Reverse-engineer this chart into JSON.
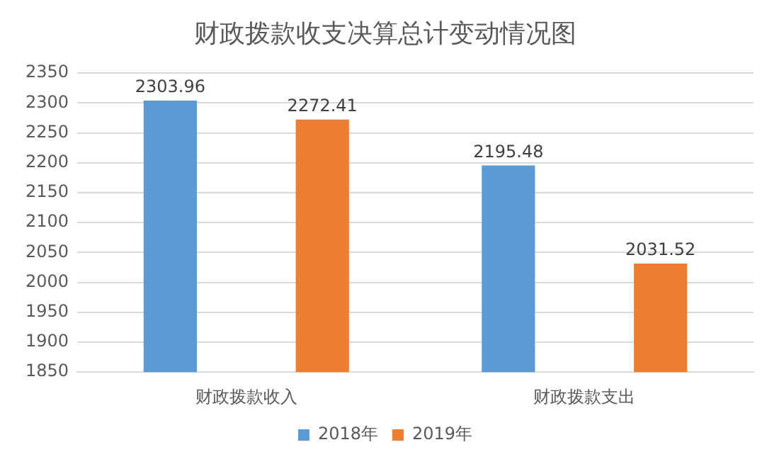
{
  "chart_data": {
    "type": "bar",
    "title": "财政拨款收支决算总计变动情况图",
    "categories": [
      "财政拨款收入",
      "财政拨款支出"
    ],
    "series": [
      {
        "name": "2018年",
        "color": "#5b9bd5",
        "values": [
          2303.96,
          2195.48
        ]
      },
      {
        "name": "2019年",
        "color": "#ed7d31",
        "values": [
          2272.41,
          2031.52
        ]
      }
    ],
    "ylim": [
      1850,
      2350
    ],
    "yticks": [
      1850,
      1900,
      1950,
      2000,
      2050,
      2100,
      2150,
      2200,
      2250,
      2300,
      2350
    ],
    "grid": "y",
    "legend": "bottom",
    "data_labels": true
  }
}
